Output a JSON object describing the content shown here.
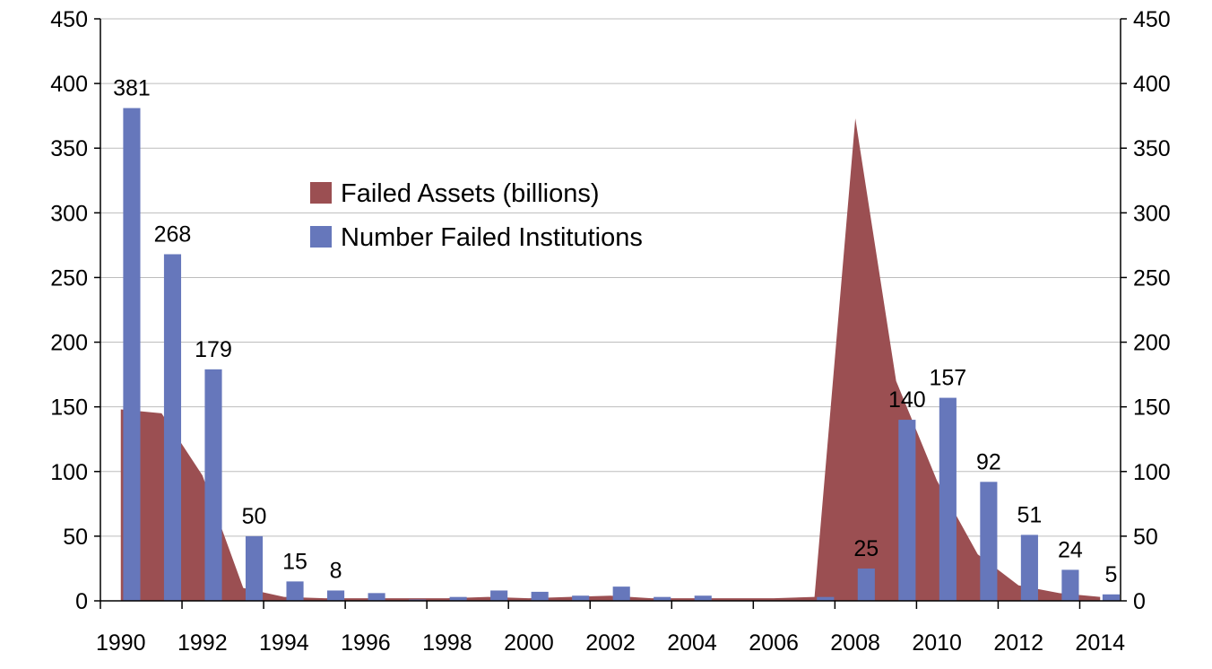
{
  "chart_data": {
    "type": "bar",
    "title": "",
    "xlabel": "",
    "ylabel": "",
    "ylim": [
      0,
      450
    ],
    "y2lim": [
      0,
      450
    ],
    "y_ticks": [
      "0",
      "50",
      "100",
      "150",
      "200",
      "250",
      "300",
      "350",
      "400",
      "450"
    ],
    "x_tick_labels": [
      "1990",
      "1992",
      "1994",
      "1996",
      "1998",
      "2000",
      "2002",
      "2004",
      "2006",
      "2008",
      "2010",
      "2012",
      "2014"
    ],
    "categories": [
      "1990",
      "1991",
      "1992",
      "1993",
      "1994",
      "1995",
      "1996",
      "1997",
      "1998",
      "1999",
      "2000",
      "2001",
      "2002",
      "2003",
      "2004",
      "2005",
      "2006",
      "2007",
      "2008",
      "2009",
      "2010",
      "2011",
      "2012",
      "2013",
      "2014"
    ],
    "grid": true,
    "legend_position": "upper-center",
    "series": [
      {
        "name": "Failed Assets (billions)",
        "kind": "area",
        "color": "#9b4f52",
        "values": [
          148,
          145,
          97,
          10,
          3,
          2,
          2,
          2,
          2,
          3,
          2,
          3,
          4,
          2,
          2,
          2,
          2,
          3,
          373,
          170,
          93,
          36,
          12,
          6,
          3
        ]
      },
      {
        "name": "Number Failed Institutions",
        "kind": "bar",
        "color": "#6677bb",
        "values": [
          381,
          268,
          179,
          50,
          15,
          8,
          6,
          1,
          3,
          8,
          7,
          4,
          11,
          3,
          4,
          0,
          0,
          3,
          25,
          140,
          157,
          92,
          51,
          24,
          5
        ],
        "data_labels": [
          "381",
          "268",
          "179",
          "50",
          "15",
          "8",
          "",
          "",
          "",
          "",
          "",
          "",
          "",
          "",
          "",
          "",
          "",
          "",
          "25",
          "140",
          "157",
          "92",
          "51",
          "24",
          "5"
        ]
      }
    ]
  }
}
